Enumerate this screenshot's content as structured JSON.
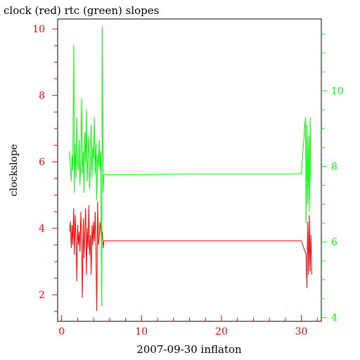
{
  "chart_data": {
    "type": "line",
    "title": "clock (red) rtc (green) slopes",
    "xlabel": "2007-09-30 inflaton",
    "ylabel": "clockslope",
    "xlim": [
      -0.5,
      32.5
    ],
    "ylim_left": [
      1.2,
      10.3
    ],
    "ylim_right": [
      3.9,
      11.9
    ],
    "x_ticks": [
      0,
      10,
      20,
      30
    ],
    "y_ticks_left": [
      2,
      4,
      6,
      8,
      10
    ],
    "y_ticks_right": [
      4,
      6,
      8,
      10
    ],
    "colors": {
      "clock": "#ff0000",
      "rtc": "#00ff00",
      "frame": "#000000"
    },
    "series": [
      {
        "name": "clock",
        "axis": "left",
        "x": [
          1.0,
          1.1,
          1.2,
          1.3,
          1.4,
          1.5,
          1.6,
          1.7,
          1.8,
          1.9,
          2.0,
          2.1,
          2.2,
          2.3,
          2.4,
          2.5,
          2.6,
          2.7,
          2.8,
          2.9,
          3.0,
          3.1,
          3.2,
          3.3,
          3.4,
          3.5,
          3.6,
          3.7,
          3.8,
          3.9,
          4.0,
          4.1,
          4.2,
          4.3,
          4.4,
          4.5,
          4.6,
          4.7,
          4.8,
          4.9,
          5.0,
          5.1,
          5.2,
          5.3,
          5.5,
          10.0,
          15.0,
          20.0,
          25.0,
          30.0,
          30.6,
          30.7,
          30.8,
          30.9,
          31.0,
          31.1,
          31.2,
          31.3
        ],
        "values": [
          3.9,
          4.2,
          3.4,
          4.1,
          3.5,
          4.6,
          3.2,
          4.4,
          3.7,
          2.4,
          4.1,
          3.5,
          3.9,
          3.3,
          4.5,
          3.6,
          1.9,
          4.3,
          3.1,
          3.9,
          4.6,
          2.6,
          4.0,
          3.4,
          4.7,
          3.2,
          3.8,
          2.6,
          4.1,
          3.5,
          4.2,
          3.6,
          4.5,
          3.3,
          1.5,
          4.8,
          3.5,
          3.7,
          4.2,
          3.9,
          3.6,
          3.9,
          3.4,
          3.62,
          3.62,
          3.62,
          3.62,
          3.62,
          3.62,
          3.62,
          3.2,
          2.2,
          4.2,
          2.6,
          4.4,
          2.7,
          3.8,
          2.6
        ]
      },
      {
        "name": "rtc",
        "axis": "right",
        "x": [
          1.0,
          1.1,
          1.2,
          1.3,
          1.4,
          1.5,
          1.6,
          1.7,
          1.8,
          1.9,
          2.0,
          2.1,
          2.2,
          2.3,
          2.4,
          2.5,
          2.6,
          2.7,
          2.8,
          2.9,
          3.0,
          3.1,
          3.2,
          3.3,
          3.4,
          3.5,
          3.6,
          3.7,
          3.8,
          3.9,
          4.0,
          4.1,
          4.2,
          4.3,
          4.4,
          4.5,
          4.6,
          4.7,
          4.8,
          4.9,
          5.0,
          5.1,
          5.2,
          5.3,
          5.5,
          10.0,
          16.0,
          20.0,
          25.0,
          30.0,
          30.5,
          30.6,
          30.7,
          30.8,
          30.9,
          31.0,
          31.1,
          31.2
        ],
        "values": [
          8.4,
          8.0,
          7.6,
          8.3,
          7.9,
          11.2,
          7.3,
          8.6,
          7.7,
          9.3,
          8.1,
          7.9,
          8.7,
          7.5,
          8.2,
          9.8,
          7.8,
          8.4,
          7.3,
          8.9,
          8.1,
          9.5,
          7.6,
          8.3,
          8.8,
          7.4,
          8.2,
          9.1,
          7.7,
          8.5,
          8.2,
          9.3,
          7.8,
          8.6,
          7.1,
          8.3,
          8.0,
          8.7,
          7.9,
          8.4,
          4.3,
          11.7,
          7.3,
          7.78,
          7.78,
          7.78,
          7.8,
          7.8,
          7.8,
          7.8,
          9.3,
          6.5,
          9.1,
          7.0,
          8.8,
          6.8,
          9.3,
          7.6
        ]
      }
    ]
  }
}
